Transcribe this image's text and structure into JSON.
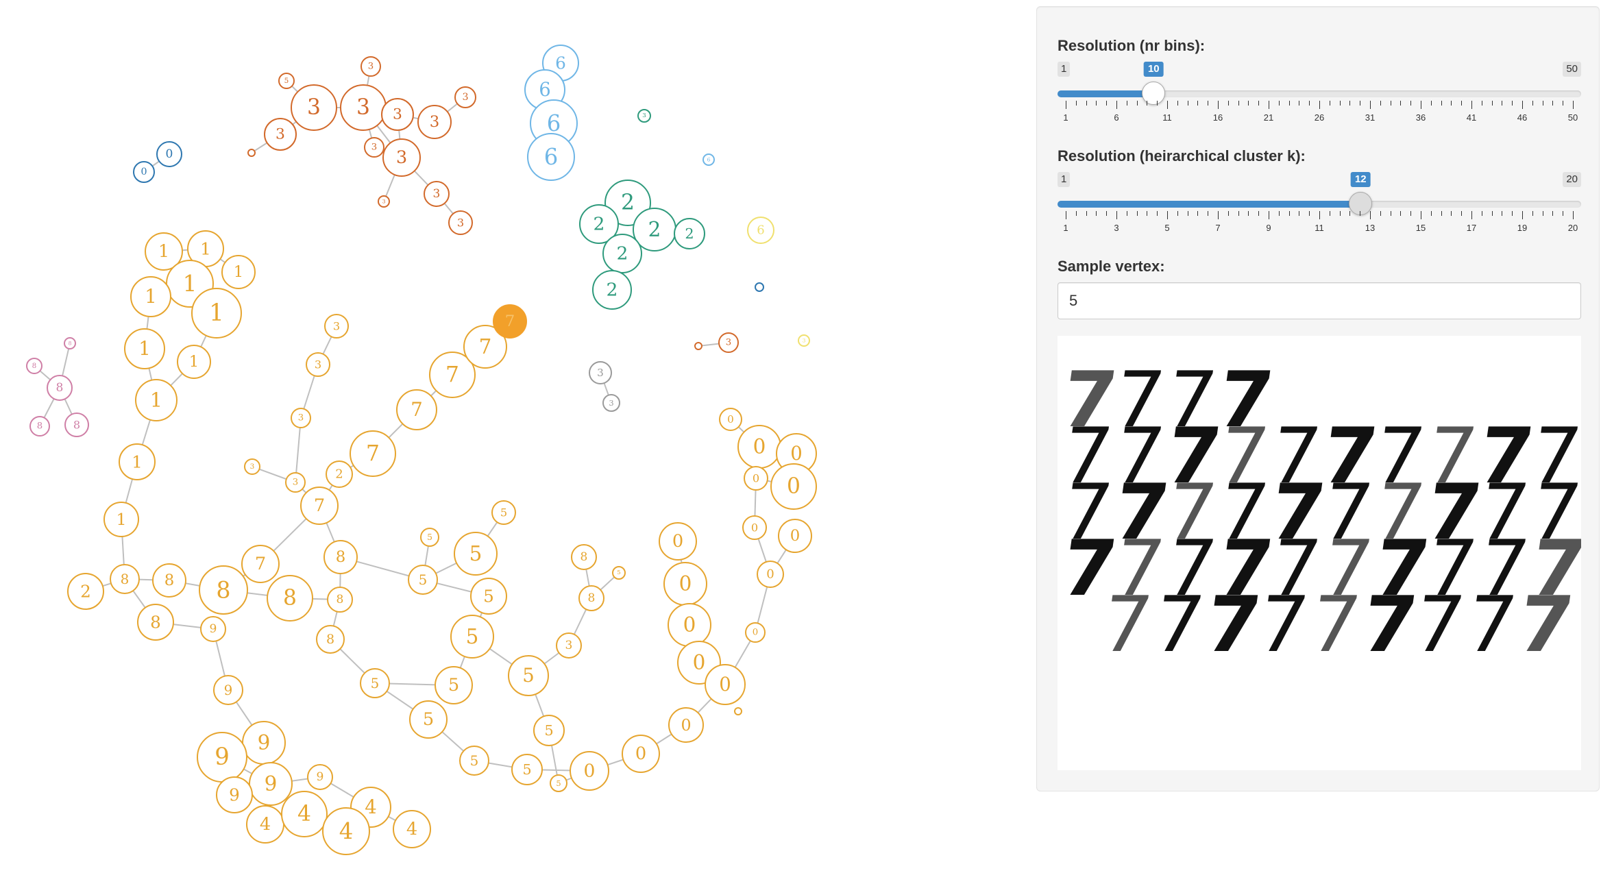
{
  "graph": {
    "accent_colors": {
      "0": "#2e77b0",
      "1": "#e6a52f",
      "2": "#2e9a7c",
      "3": "#d2692a",
      "4": "#e6a52f",
      "5": "#e6a52f",
      "6": "#6fb6e6",
      "7": "#e6a52f",
      "8": "#cf7fa6",
      "9": "#e6a52f",
      "grey": "#9a9a9a",
      "yellow": "#f0e06e",
      "selected": "#f2a02a",
      "edge": "#bfbfbf"
    },
    "selected_node_label": "7",
    "node_labels": [
      "0",
      "1",
      "2",
      "3",
      "4",
      "5",
      "6",
      "7",
      "8",
      "9"
    ]
  },
  "controls": {
    "bins_slider": {
      "label": "Resolution (nr bins):",
      "min": 1,
      "max": 50,
      "value": 10,
      "min_label": "1",
      "max_label": "50",
      "value_label": "10",
      "tick_labels": [
        "1",
        "6",
        "11",
        "16",
        "21",
        "26",
        "31",
        "36",
        "41",
        "46",
        "50"
      ]
    },
    "k_slider": {
      "label": "Resolution (heirarchical cluster k):",
      "min": 1,
      "max": 20,
      "value": 12,
      "min_label": "1",
      "max_label": "20",
      "value_label": "12",
      "tick_labels": [
        "1",
        "3",
        "5",
        "7",
        "9",
        "11",
        "13",
        "15",
        "17",
        "19",
        "20"
      ]
    },
    "sample_vertex": {
      "label": "Sample vertex:",
      "value": "5"
    },
    "sample_image": {
      "digit": "7",
      "rows": [
        4,
        10,
        10,
        10,
        9
      ]
    }
  }
}
